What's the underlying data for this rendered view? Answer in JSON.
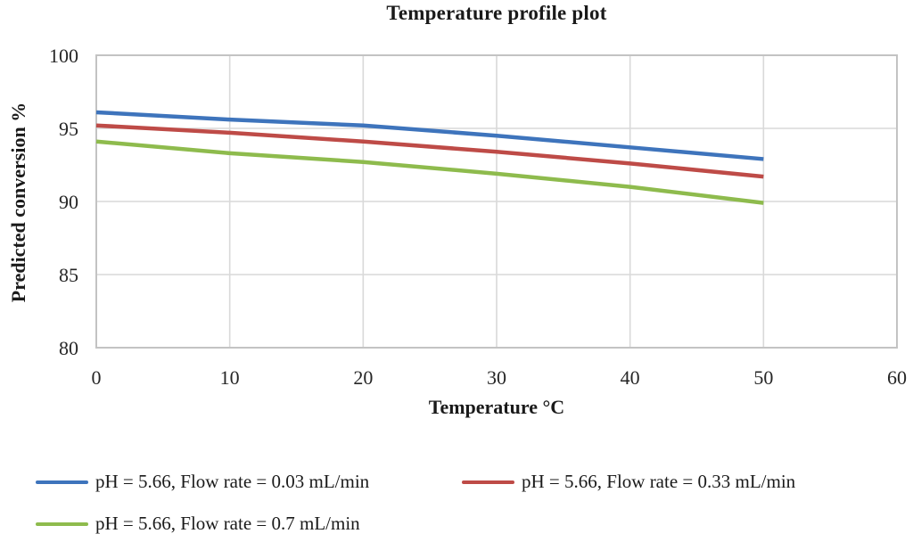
{
  "chart_data": {
    "type": "line",
    "title": "Temperature profile plot",
    "xlabel": "Temperature °C",
    "ylabel": "Predicted conversion %",
    "xlim": [
      0,
      60
    ],
    "ylim": [
      80,
      100
    ],
    "xticks": [
      0,
      10,
      20,
      30,
      40,
      50,
      60
    ],
    "yticks": [
      80,
      85,
      90,
      95,
      100
    ],
    "grid": true,
    "legend_position": "bottom-left",
    "x": [
      0,
      10,
      20,
      30,
      40,
      50
    ],
    "series": [
      {
        "name": "pH = 5.66, Flow rate = 0.03 mL/min",
        "color": "#3E74BC",
        "values": [
          96.1,
          95.6,
          95.2,
          94.5,
          93.7,
          92.9
        ]
      },
      {
        "name": "pH = 5.66, Flow rate = 0.33 mL/min",
        "color": "#BE4B47",
        "values": [
          95.2,
          94.7,
          94.1,
          93.4,
          92.6,
          91.7
        ]
      },
      {
        "name": "pH = 5.66, Flow rate = 0.7 mL/min",
        "color": "#8EBB4D",
        "values": [
          94.1,
          93.3,
          92.7,
          91.9,
          91.0,
          89.9
        ]
      }
    ]
  }
}
